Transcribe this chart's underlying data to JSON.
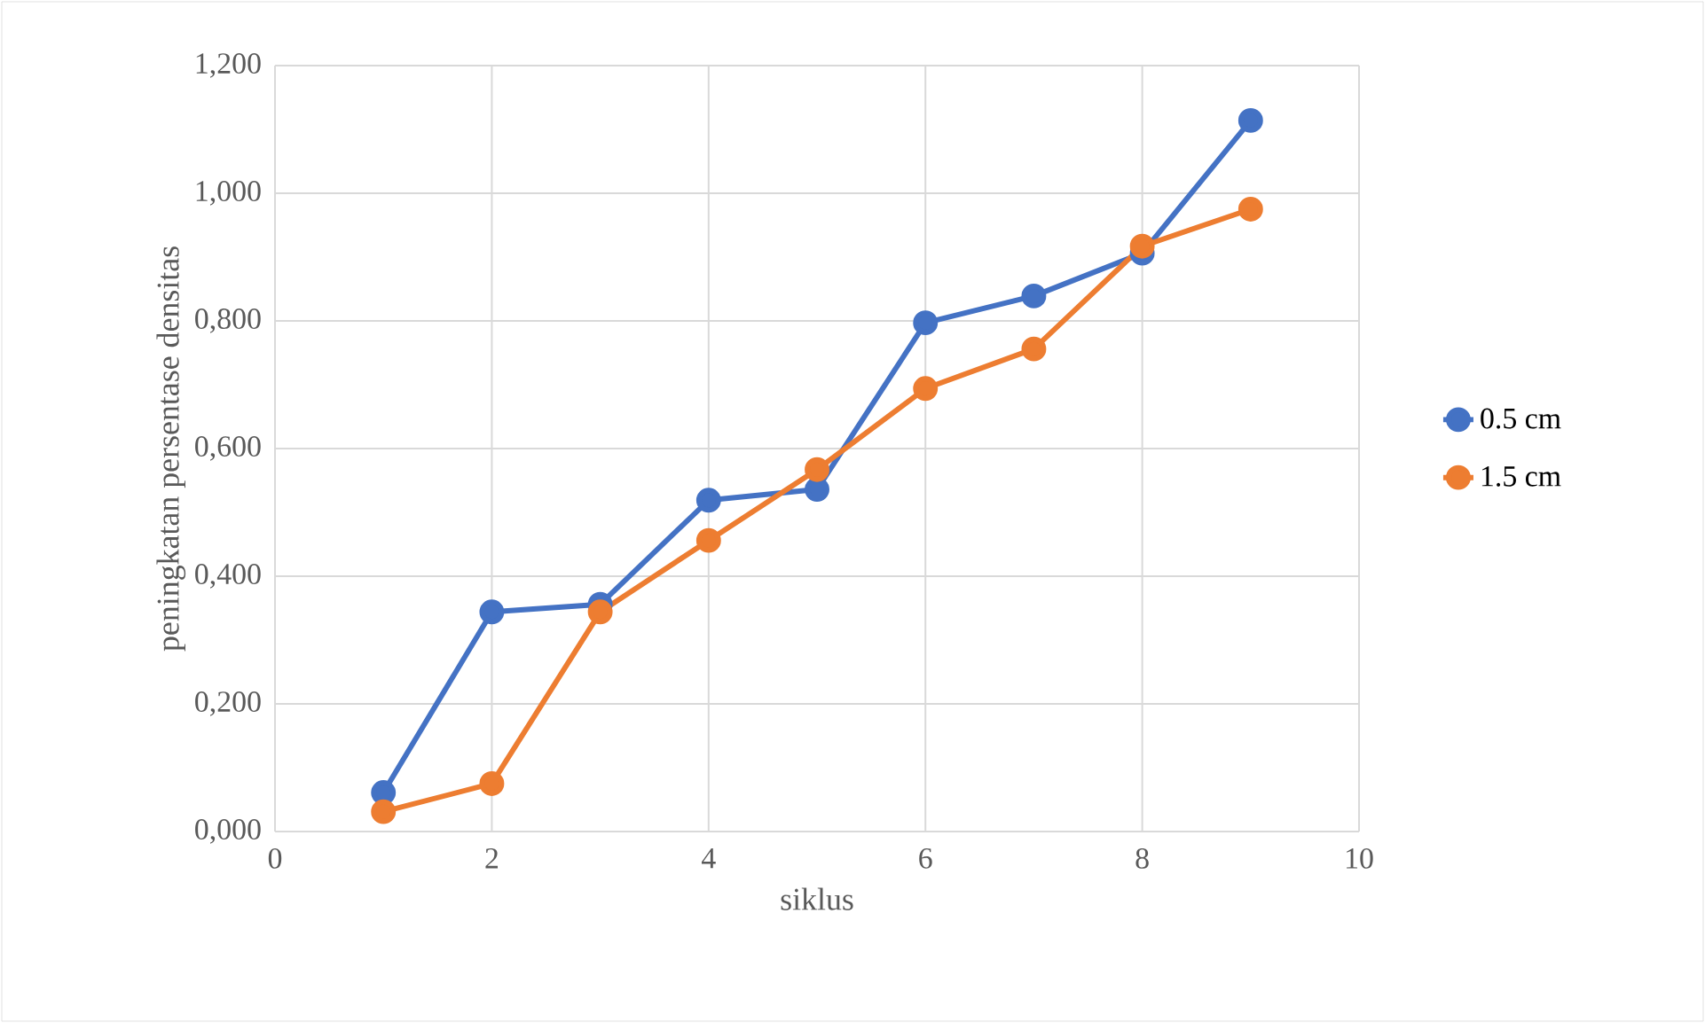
{
  "chart_data": {
    "type": "line",
    "xlabel": "siklus",
    "ylabel": "peningkatan persentase densitas",
    "x": [
      1,
      2,
      3,
      4,
      5,
      6,
      7,
      8,
      9
    ],
    "series": [
      {
        "name": "0.5 cm",
        "color": "#4472c4",
        "values": [
          0.061,
          0.344,
          0.356,
          0.519,
          0.536,
          0.797,
          0.839,
          0.906,
          1.114
        ]
      },
      {
        "name": "1.5 cm",
        "color": "#ed7d31",
        "values": [
          0.031,
          0.075,
          0.344,
          0.456,
          0.567,
          0.694,
          0.756,
          0.917,
          0.975
        ]
      }
    ],
    "xlim": [
      0,
      10
    ],
    "xticks": [
      0,
      2,
      4,
      6,
      8,
      10
    ],
    "ylim": [
      0,
      1.2
    ],
    "yticks": [
      {
        "value": 0,
        "label": "0,000"
      },
      {
        "value": 0.2,
        "label": "0,200"
      },
      {
        "value": 0.4,
        "label": "0,400"
      },
      {
        "value": 0.6,
        "label": "0,600"
      },
      {
        "value": 0.8,
        "label": "0,800"
      },
      {
        "value": 1.0,
        "label": "1,000"
      },
      {
        "value": 1.2,
        "label": "1,200"
      }
    ],
    "grid": true,
    "legend": "right",
    "marker": "circle",
    "line_style": "solid"
  }
}
